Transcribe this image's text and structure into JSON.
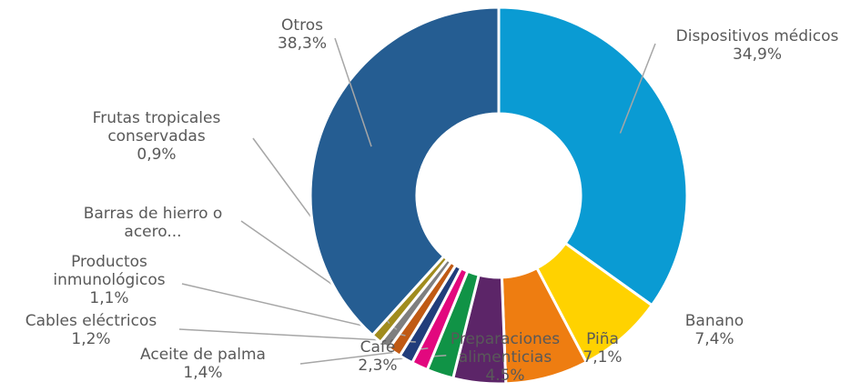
{
  "chart_data": {
    "type": "donut",
    "categories": [
      "Dispositivos médicos",
      "Banano",
      "Piña",
      "Preparaciones alimenticias",
      "Café",
      "Aceite de palma",
      "Cables eléctricos",
      "Productos inmunológicos",
      "Barras de hierro o acero...",
      "Frutas tropicales conservadas",
      "Otros"
    ],
    "values": [
      34.9,
      7.4,
      7.1,
      4.5,
      2.3,
      1.4,
      1.2,
      1.1,
      0.9,
      0.9,
      38.3
    ],
    "value_labels": [
      "34,9%",
      "7,4%",
      "7,1%",
      "4.5%",
      "2,3%",
      "1,4%",
      "1,2%",
      "1,1%",
      null,
      "0,9%",
      "38,3%"
    ],
    "colors": [
      "#0a9bd3",
      "#ffd200",
      "#ee7d11",
      "#5c2568",
      "#109346",
      "#e2087e",
      "#213d7b",
      "#c05a14",
      "#7f7f7f",
      "#a08c1e",
      "#255d92"
    ]
  }
}
